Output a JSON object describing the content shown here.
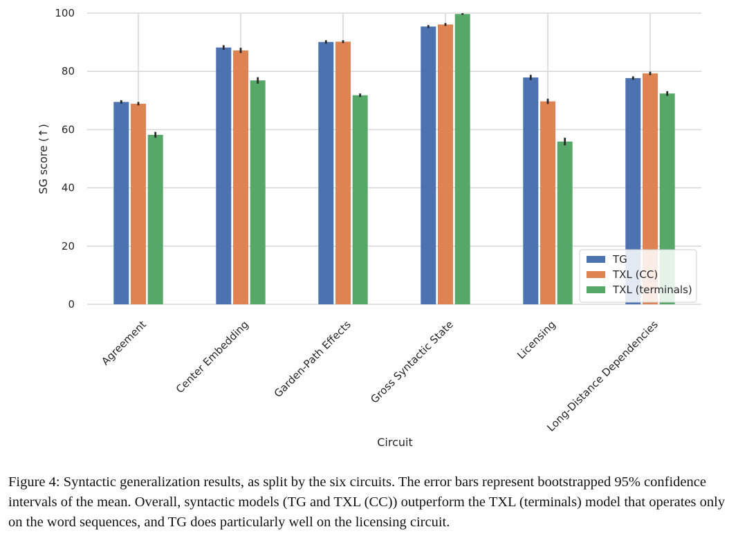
{
  "chart_data": {
    "type": "bar",
    "title": "",
    "xlabel": "Circuit",
    "ylabel": "SG score (↑)",
    "ylim": [
      0,
      100
    ],
    "yticks": [
      0,
      20,
      40,
      60,
      80,
      100
    ],
    "grid": true,
    "legend_position": "bottom-right",
    "categories": [
      "Agreement",
      "Center Embedding",
      "Garden-Path Effects",
      "Gross Syntactic State",
      "Licensing",
      "Long-Distance Dependencies"
    ],
    "series": [
      {
        "name": "TG",
        "color": "#4c72b0",
        "values": [
          69.5,
          88.2,
          90.1,
          95.4,
          77.9,
          77.7
        ],
        "errors": [
          0.6,
          0.8,
          0.6,
          0.5,
          0.9,
          0.6
        ]
      },
      {
        "name": "TXL (CC)",
        "color": "#dd8452",
        "values": [
          68.9,
          87.2,
          90.2,
          96.1,
          69.7,
          79.3
        ],
        "errors": [
          0.6,
          0.9,
          0.5,
          0.5,
          0.9,
          0.6
        ]
      },
      {
        "name": "TXL (terminals)",
        "color": "#55a868",
        "values": [
          58.2,
          76.9,
          71.8,
          99.7,
          55.9,
          72.4
        ],
        "errors": [
          1.0,
          1.1,
          0.6,
          0.3,
          1.3,
          0.8
        ]
      }
    ]
  },
  "caption": "Figure 4: Syntactic generalization results, as split by the six circuits. The error bars represent bootstrapped 95% confidence intervals of the mean. Overall, syntactic models (TG and TXL (CC)) outperform the TXL (terminals) model that operates only on the word sequences, and TG does particularly well on the licensing circuit."
}
